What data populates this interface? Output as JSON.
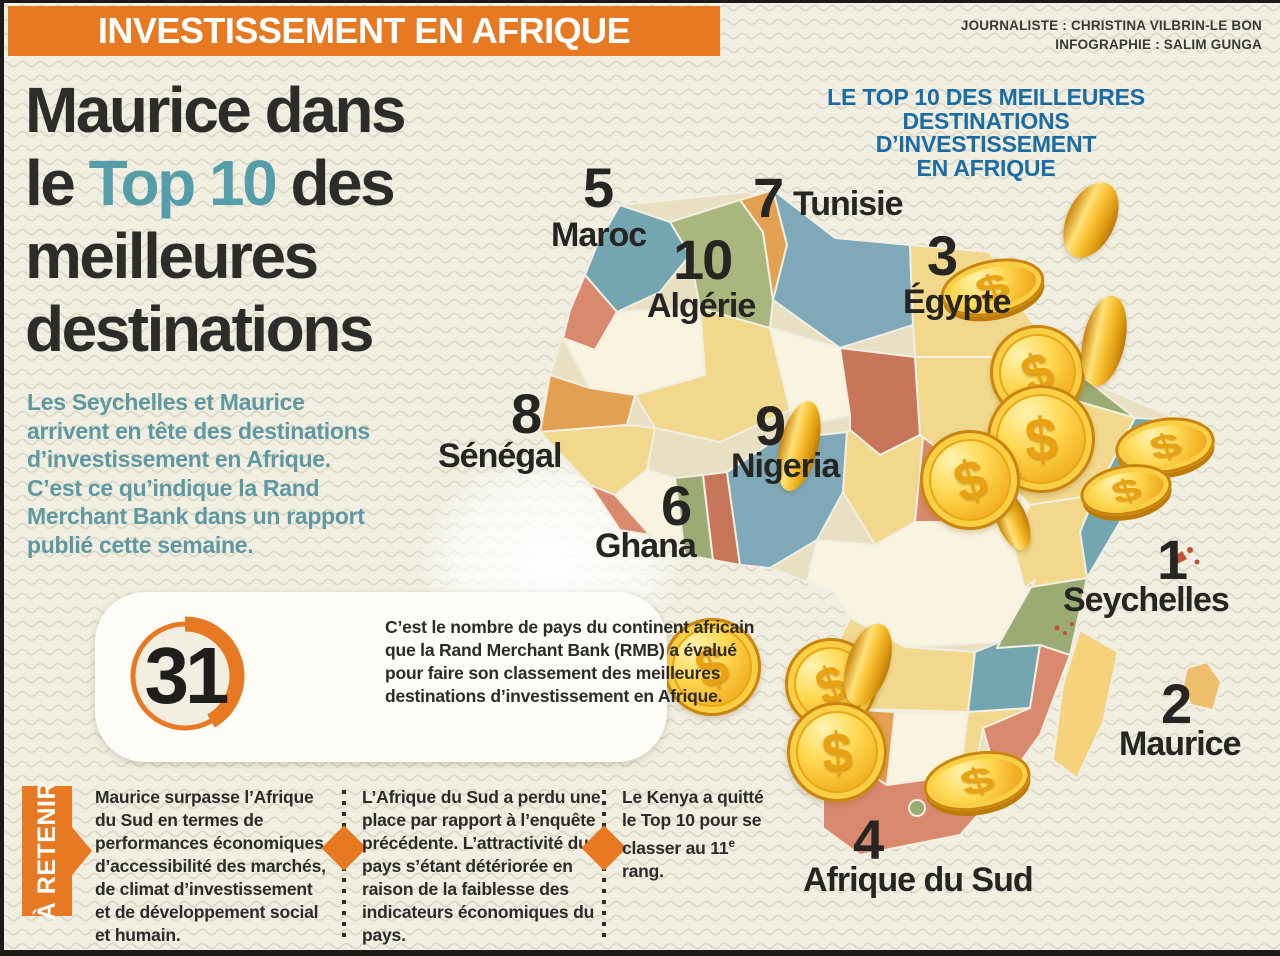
{
  "meta": {
    "kicker": "INVESTISSEMENT EN AFRIQUE",
    "credits": [
      "JOURNALISTE : CHRISTINA VILBRIN-LE BON",
      "INFOGRAPHIE : SALIM GUNGA"
    ]
  },
  "headline": {
    "line1": "Maurice dans",
    "line2_pre": "le ",
    "line2_accent": "Top 10",
    "line2_post": " des",
    "line3": "meilleures",
    "line4": "destinations"
  },
  "intro_lines": [
    "Les Seychelles et Maurice",
    "arrivent en tête des destinations",
    "d’investissement en Afrique.",
    "C’est ce qu’indique la Rand",
    "Merchant Bank dans un rapport",
    "publié cette semaine."
  ],
  "stat": {
    "number": "31",
    "text": "C’est le nombre de pays du continent africain que la Rand Merchant Bank (RMB) a évalué pour faire son classement des meilleures destinations d’investissement en Afrique."
  },
  "map": {
    "title_lines": [
      "LE TOP 10 DES MEILLEURES",
      "DESTINATIONS",
      "D’INVESTISSEMENT",
      "EN AFRIQUE"
    ],
    "rankings": [
      {
        "rank": "1",
        "country": "Seychelles"
      },
      {
        "rank": "2",
        "country": "Maurice"
      },
      {
        "rank": "3",
        "country": "Égypte"
      },
      {
        "rank": "4",
        "country": "Afrique du Sud"
      },
      {
        "rank": "5",
        "country": "Maroc"
      },
      {
        "rank": "6",
        "country": "Ghana"
      },
      {
        "rank": "7",
        "country": "Tunisie"
      },
      {
        "rank": "8",
        "country": "Sénégal"
      },
      {
        "rank": "9",
        "country": "Nigeria"
      },
      {
        "rank": "10",
        "country": "Algérie"
      }
    ]
  },
  "retenir": {
    "label": "À RETENIR",
    "notes": [
      {
        "lead": "Maurice",
        "text": " surpasse l’Afrique du Sud en termes de performances économiques, d’accessibilité des marchés, de climat d’investissement et de développement social et humain."
      },
      {
        "lead": "L’Afrique du Sud",
        "text": " a perdu une place par rapport à l’enquête précédente. L’attractivité du pays s’étant détériorée en raison de la faiblesse des indicateurs économiques du pays."
      },
      {
        "lead": "Le Kenya",
        "text": " a quitté le Top 10 pour se classer au 11",
        "sup": "e",
        "tail": " rang."
      }
    ]
  },
  "colors": {
    "orange": "#e87923",
    "teal_accent": "#569daa",
    "teal_text": "#5f98a1",
    "blue_title": "#1b6ba5",
    "dark_text": "#2e2c29",
    "background": "#f1efe2",
    "coin_gold": "#f7c838"
  }
}
